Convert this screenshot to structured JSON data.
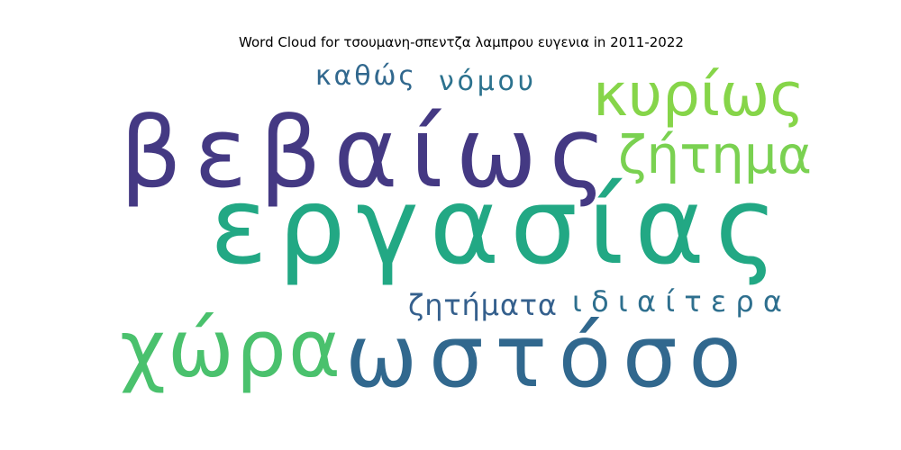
{
  "chart_data": {
    "type": "wordcloud",
    "title": "Word Cloud for τσουμανη-σπεντζα λαμπρου ευγενια in 2011-2022",
    "words": [
      {
        "text": "εργασίας",
        "color": "#22a884"
      },
      {
        "text": "βεβαίως",
        "color": "#443983"
      },
      {
        "text": "ωστόσο",
        "color": "#31688e"
      },
      {
        "text": "χώρα",
        "color": "#4ac16d"
      },
      {
        "text": "κυρίως",
        "color": "#86d549"
      },
      {
        "text": "ζήτημα",
        "color": "#7ad151"
      },
      {
        "text": "ζητήματα",
        "color": "#35608d"
      },
      {
        "text": "ιδιαίτερα",
        "color": "#2e6f8e"
      },
      {
        "text": "καθώς",
        "color": "#31688e"
      },
      {
        "text": "νόμου",
        "color": "#2c728e"
      }
    ]
  }
}
